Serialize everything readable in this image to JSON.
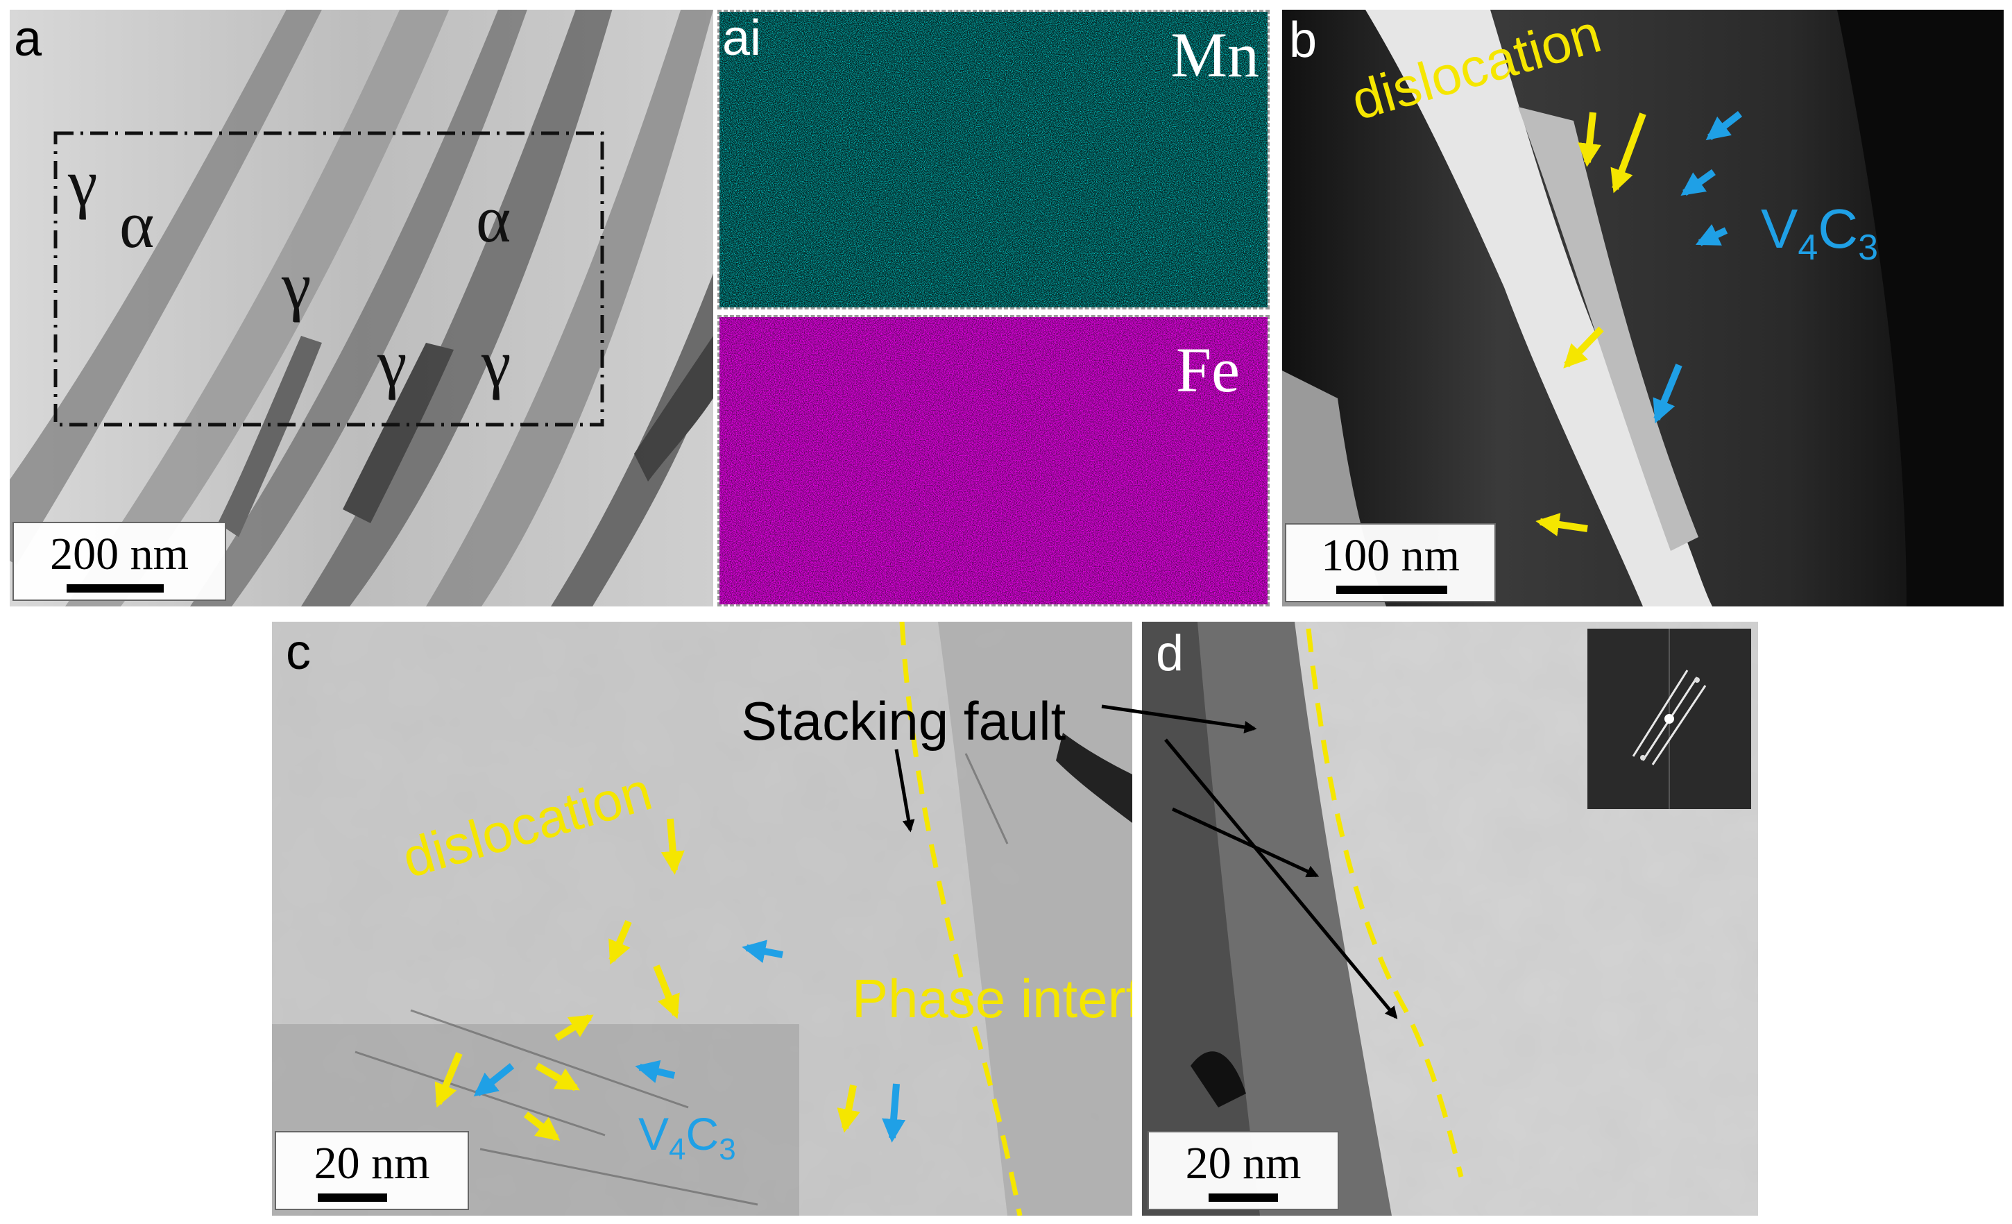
{
  "panel_a": {
    "letter": "a",
    "phase_labels": [
      "γ",
      "α",
      "γ",
      "α",
      "γ",
      "γ"
    ],
    "scale": "200 nm"
  },
  "panel_ai": {
    "letter": "ai",
    "elements": [
      "Mn",
      "Fe"
    ],
    "colors": {
      "Mn": "#00c8c8",
      "Fe": "#d400d4"
    }
  },
  "panel_b": {
    "letter": "b",
    "dislocation": "dislocation",
    "precipitate": "V",
    "precipitate_sub1": "4",
    "precipitate_mid": "C",
    "precipitate_sub2": "3",
    "scale": "100 nm"
  },
  "panel_c": {
    "letter": "c",
    "dislocation": "dislocation",
    "stacking_fault": "Stacking fault",
    "phase_interface": "Phase interface",
    "precipitate": "V",
    "precipitate_sub1": "4",
    "precipitate_mid": "C",
    "precipitate_sub2": "3",
    "scale": "20 nm"
  },
  "panel_d": {
    "letter": "d",
    "scale": "20 nm"
  },
  "colors": {
    "yellow": "#f5e600",
    "blue": "#1fa0e6"
  }
}
